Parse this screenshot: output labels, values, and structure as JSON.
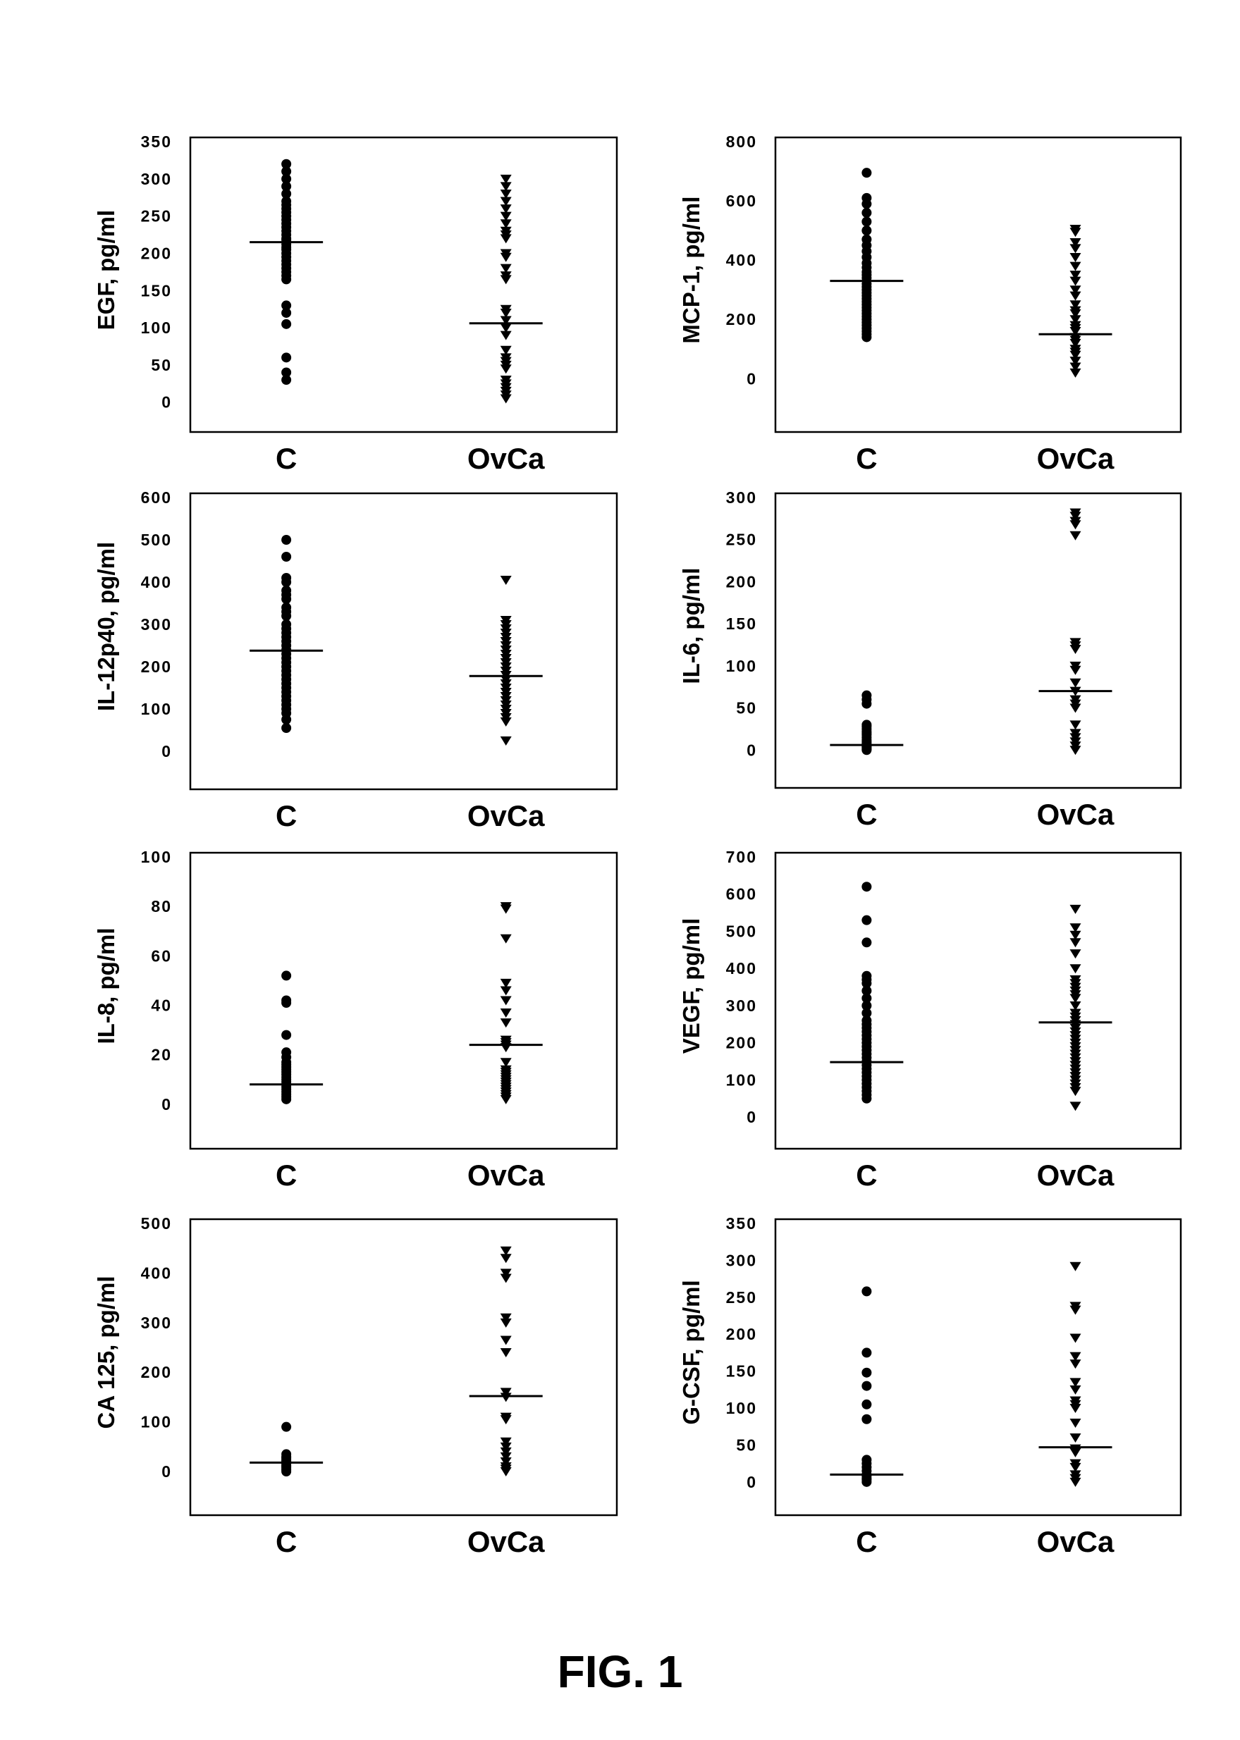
{
  "caption": "FIG. 1",
  "chart_data": [
    {
      "type": "scatter",
      "ylabel": "EGF, pg/ml",
      "categories": [
        "C",
        "OvCa"
      ],
      "ylim": [
        -40,
        350
      ],
      "yticks": [
        0,
        50,
        100,
        150,
        200,
        250,
        300,
        350
      ],
      "series": [
        {
          "name": "C",
          "marker": "circle",
          "median": 215,
          "values": [
            320,
            310,
            300,
            290,
            280,
            270,
            265,
            260,
            255,
            250,
            245,
            240,
            235,
            230,
            225,
            220,
            218,
            212,
            208,
            205,
            200,
            195,
            190,
            185,
            180,
            175,
            170,
            165,
            130,
            120,
            105,
            60,
            40,
            30
          ]
        },
        {
          "name": "OvCa",
          "marker": "triangle-down",
          "median": 106,
          "values": [
            300,
            290,
            280,
            270,
            260,
            250,
            240,
            230,
            225,
            220,
            200,
            195,
            180,
            170,
            165,
            125,
            120,
            110,
            100,
            90,
            70,
            60,
            55,
            50,
            45,
            30,
            25,
            20,
            15,
            10,
            5
          ]
        }
      ]
    },
    {
      "type": "scatter",
      "ylabel": "MCP-1, pg/ml",
      "categories": [
        "C",
        "OvCa"
      ],
      "ylim": [
        -180,
        800
      ],
      "yticks": [
        0,
        200,
        400,
        600,
        800
      ],
      "series": [
        {
          "name": "C",
          "marker": "circle",
          "median": 330,
          "values": [
            695,
            610,
            590,
            560,
            530,
            500,
            470,
            450,
            430,
            410,
            390,
            375,
            360,
            350,
            340,
            320,
            310,
            300,
            290,
            280,
            270,
            260,
            250,
            240,
            230,
            220,
            210,
            200,
            190,
            180,
            170,
            160,
            150,
            140
          ]
        },
        {
          "name": "OvCa",
          "marker": "triangle-down",
          "median": 150,
          "values": [
            505,
            495,
            460,
            440,
            410,
            380,
            350,
            330,
            300,
            280,
            250,
            230,
            220,
            200,
            180,
            170,
            160,
            140,
            130,
            120,
            100,
            90,
            80,
            60,
            40,
            20
          ]
        }
      ]
    },
    {
      "type": "scatter",
      "ylabel": "IL-12p40, pg/ml",
      "categories": [
        "C",
        "OvCa"
      ],
      "ylim": [
        -90,
        600
      ],
      "yticks": [
        0,
        100,
        200,
        300,
        400,
        500,
        600
      ],
      "series": [
        {
          "name": "C",
          "marker": "circle",
          "median": 238,
          "values": [
            500,
            460,
            410,
            400,
            380,
            370,
            360,
            340,
            330,
            320,
            300,
            290,
            280,
            270,
            260,
            250,
            240,
            230,
            220,
            210,
            200,
            190,
            180,
            170,
            160,
            150,
            140,
            130,
            120,
            110,
            100,
            90,
            75,
            55
          ]
        },
        {
          "name": "OvCa",
          "marker": "triangle-down",
          "median": 178,
          "values": [
            405,
            310,
            300,
            290,
            280,
            270,
            260,
            250,
            240,
            230,
            220,
            210,
            200,
            190,
            180,
            170,
            160,
            150,
            140,
            130,
            120,
            110,
            100,
            90,
            80,
            70,
            25
          ]
        }
      ]
    },
    {
      "type": "scatter",
      "ylabel": "IL-6, pg/ml",
      "categories": [
        "C",
        "OvCa"
      ],
      "ylim": [
        -45,
        300
      ],
      "yticks": [
        0,
        50,
        100,
        150,
        200,
        250,
        300
      ],
      "series": [
        {
          "name": "C",
          "marker": "circle",
          "median": 6,
          "values": [
            65,
            60,
            55,
            30,
            28,
            25,
            22,
            20,
            18,
            15,
            12,
            10,
            8,
            6,
            5,
            4,
            3,
            2,
            1,
            0
          ]
        },
        {
          "name": "OvCa",
          "marker": "triangle-down",
          "median": 70,
          "values": [
            282,
            278,
            272,
            268,
            255,
            128,
            124,
            120,
            100,
            95,
            80,
            70,
            60,
            55,
            50,
            30,
            20,
            15,
            10,
            5,
            0
          ]
        }
      ]
    },
    {
      "type": "scatter",
      "ylabel": "IL-8, pg/ml",
      "categories": [
        "C",
        "OvCa"
      ],
      "ylim": [
        -18,
        100
      ],
      "yticks": [
        0,
        20,
        40,
        60,
        80,
        100
      ],
      "series": [
        {
          "name": "C",
          "marker": "circle",
          "median": 8,
          "values": [
            52,
            42,
            41,
            28,
            21,
            19,
            17,
            16,
            15,
            14,
            13,
            12,
            11,
            10,
            9,
            8,
            7,
            6,
            5,
            4,
            3,
            2
          ]
        },
        {
          "name": "OvCa",
          "marker": "triangle-down",
          "median": 24,
          "values": [
            80,
            79,
            67,
            49,
            46,
            42,
            37,
            33,
            26,
            25,
            24,
            23,
            17,
            14,
            13,
            12,
            11,
            10,
            9,
            8,
            7,
            6,
            5,
            4,
            3,
            2
          ]
        }
      ]
    },
    {
      "type": "scatter",
      "ylabel": "VEGF, pg/ml",
      "categories": [
        "C",
        "OvCa"
      ],
      "ylim": [
        -85,
        700
      ],
      "yticks": [
        0,
        100,
        200,
        300,
        400,
        500,
        600,
        700
      ],
      "series": [
        {
          "name": "C",
          "marker": "circle",
          "median": 148,
          "values": [
            620,
            530,
            470,
            380,
            370,
            360,
            340,
            320,
            300,
            280,
            260,
            250,
            240,
            230,
            220,
            210,
            200,
            190,
            180,
            170,
            160,
            150,
            140,
            130,
            120,
            110,
            100,
            90,
            80,
            70,
            60,
            50
          ]
        },
        {
          "name": "OvCa",
          "marker": "triangle-down",
          "median": 255,
          "values": [
            560,
            510,
            490,
            470,
            440,
            400,
            370,
            360,
            350,
            340,
            330,
            320,
            300,
            280,
            270,
            260,
            250,
            240,
            230,
            220,
            210,
            200,
            190,
            180,
            170,
            160,
            150,
            140,
            130,
            120,
            110,
            100,
            90,
            80,
            70,
            30
          ]
        }
      ]
    },
    {
      "type": "scatter",
      "ylabel": "CA 125, pg/ml",
      "categories": [
        "C",
        "OvCa"
      ],
      "ylim": [
        -88,
        500
      ],
      "yticks": [
        0,
        100,
        200,
        300,
        400,
        500
      ],
      "series": [
        {
          "name": "C",
          "marker": "circle",
          "median": 18,
          "values": [
            90,
            35,
            30,
            28,
            25,
            22,
            20,
            18,
            15,
            12,
            10,
            8,
            5,
            3,
            0
          ]
        },
        {
          "name": "OvCa",
          "marker": "triangle-down",
          "median": 152,
          "values": [
            445,
            430,
            400,
            390,
            310,
            300,
            265,
            240,
            160,
            150,
            110,
            105,
            60,
            50,
            40,
            30,
            20,
            10,
            5,
            0
          ]
        }
      ]
    },
    {
      "type": "scatter",
      "ylabel": "G-CSF, pg/ml",
      "categories": [
        "C",
        "OvCa"
      ],
      "ylim": [
        -45,
        350
      ],
      "yticks": [
        0,
        50,
        100,
        150,
        200,
        250,
        300,
        350
      ],
      "series": [
        {
          "name": "C",
          "marker": "circle",
          "median": 10,
          "values": [
            258,
            175,
            148,
            130,
            105,
            85,
            30,
            25,
            20,
            15,
            10,
            8,
            5,
            3,
            0
          ]
        },
        {
          "name": "OvCa",
          "marker": "triangle-down",
          "median": 47,
          "values": [
            292,
            238,
            233,
            195,
            170,
            160,
            135,
            125,
            110,
            105,
            100,
            80,
            60,
            45,
            40,
            25,
            20,
            10,
            5,
            0
          ]
        }
      ]
    }
  ]
}
